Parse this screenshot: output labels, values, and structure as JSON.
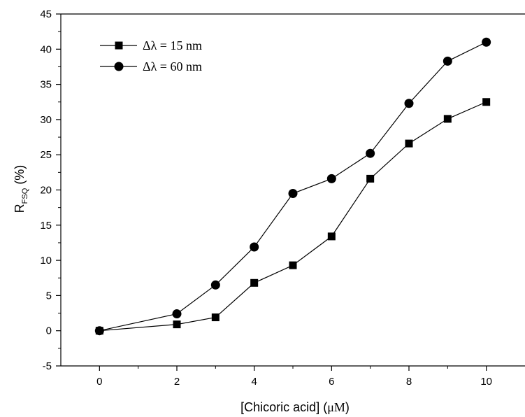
{
  "chart_data": {
    "type": "line",
    "xlabel_main": "[Chicoric acid] (",
    "xlabel_unit": "μM",
    "xlabel_close": ")",
    "ylabel_main": "R",
    "ylabel_sub": "FSQ",
    "ylabel_rest": " (%)",
    "xlim": [
      -1,
      11
    ],
    "ylim": [
      -5,
      45
    ],
    "x_ticks": [
      0,
      2,
      4,
      6,
      8,
      10
    ],
    "x_tick_labels": [
      "0",
      "2",
      "4",
      "6",
      "8",
      "10"
    ],
    "y_ticks": [
      -5,
      0,
      5,
      10,
      15,
      20,
      25,
      30,
      35,
      40,
      45
    ],
    "y_tick_labels": [
      "-5",
      "0",
      "5",
      "10",
      "15",
      "20",
      "25",
      "30",
      "35",
      "40",
      "45"
    ],
    "grid": false,
    "legend_position": "top-left",
    "series": [
      {
        "name": "Δλ = 15 nm",
        "marker": "square",
        "x": [
          0,
          2,
          3,
          4,
          5,
          6,
          7,
          8,
          9,
          10
        ],
        "y": [
          0,
          0.9,
          1.9,
          6.8,
          9.3,
          13.4,
          21.6,
          26.6,
          30.1,
          32.5
        ]
      },
      {
        "name": "Δλ = 60 nm",
        "marker": "circle",
        "x": [
          0,
          2,
          3,
          4,
          5,
          6,
          7,
          8,
          9,
          10
        ],
        "y": [
          0,
          2.4,
          6.5,
          11.9,
          19.5,
          21.6,
          25.2,
          32.3,
          38.3,
          41.0
        ]
      }
    ]
  }
}
